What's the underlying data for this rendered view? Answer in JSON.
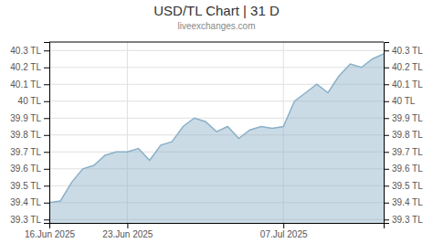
{
  "chart_data": {
    "type": "area",
    "title": "USD/TL Chart | 31 D",
    "subtitle": "liveexchanges.com",
    "categories": [
      "16.Jun 2025",
      null,
      null,
      null,
      null,
      null,
      null,
      "23.Jun 2025",
      null,
      null,
      null,
      null,
      null,
      null,
      null,
      null,
      null,
      null,
      null,
      null,
      null,
      "07.Jul 2025",
      null,
      null,
      null,
      null,
      null,
      null,
      null,
      null,
      null
    ],
    "values": [
      39.4,
      39.41,
      39.52,
      39.6,
      39.62,
      39.68,
      39.7,
      39.7,
      39.72,
      39.65,
      39.74,
      39.76,
      39.85,
      39.9,
      39.88,
      39.82,
      39.85,
      39.78,
      39.83,
      39.85,
      39.84,
      39.85,
      40.0,
      40.05,
      40.1,
      40.05,
      40.15,
      40.22,
      40.2,
      40.25,
      40.28
    ],
    "color": "#8ab0c8",
    "ylim": [
      39.28,
      40.35
    ],
    "yticks": [
      {
        "value": 39.3,
        "label": "39.3 TL"
      },
      {
        "value": 39.4,
        "label": "39.4 TL"
      },
      {
        "value": 39.5,
        "label": "39.5 TL"
      },
      {
        "value": 39.6,
        "label": "39.6 TL"
      },
      {
        "value": 39.7,
        "label": "39.7 TL"
      },
      {
        "value": 39.8,
        "label": "39.8 TL"
      },
      {
        "value": 39.9,
        "label": "39.9 TL"
      },
      {
        "value": 40.0,
        "label": "40 TL"
      },
      {
        "value": 40.1,
        "label": "40.1 TL"
      },
      {
        "value": 40.2,
        "label": "40.2 TL"
      },
      {
        "value": 40.3,
        "label": "40.3 TL"
      }
    ],
    "y2lim": [
      39.28,
      40.35
    ],
    "y2ticks": [
      {
        "value": 39.3,
        "label": "39.3 TL"
      },
      {
        "value": 39.4,
        "label": "39.4 TL"
      },
      {
        "value": 39.5,
        "label": "39.5 TL"
      },
      {
        "value": 39.6,
        "label": "39.6 TL"
      },
      {
        "value": 39.7,
        "label": "39.7 TL"
      },
      {
        "value": 39.8,
        "label": "39.8 TL"
      },
      {
        "value": 39.9,
        "label": "39.9 TL"
      },
      {
        "value": 40.0,
        "label": "40 TL"
      },
      {
        "value": 40.1,
        "label": "40.1 TL"
      },
      {
        "value": 40.2,
        "label": "40.2 TL"
      },
      {
        "value": 40.3,
        "label": "40.3 TL"
      }
    ],
    "grid": true
  }
}
